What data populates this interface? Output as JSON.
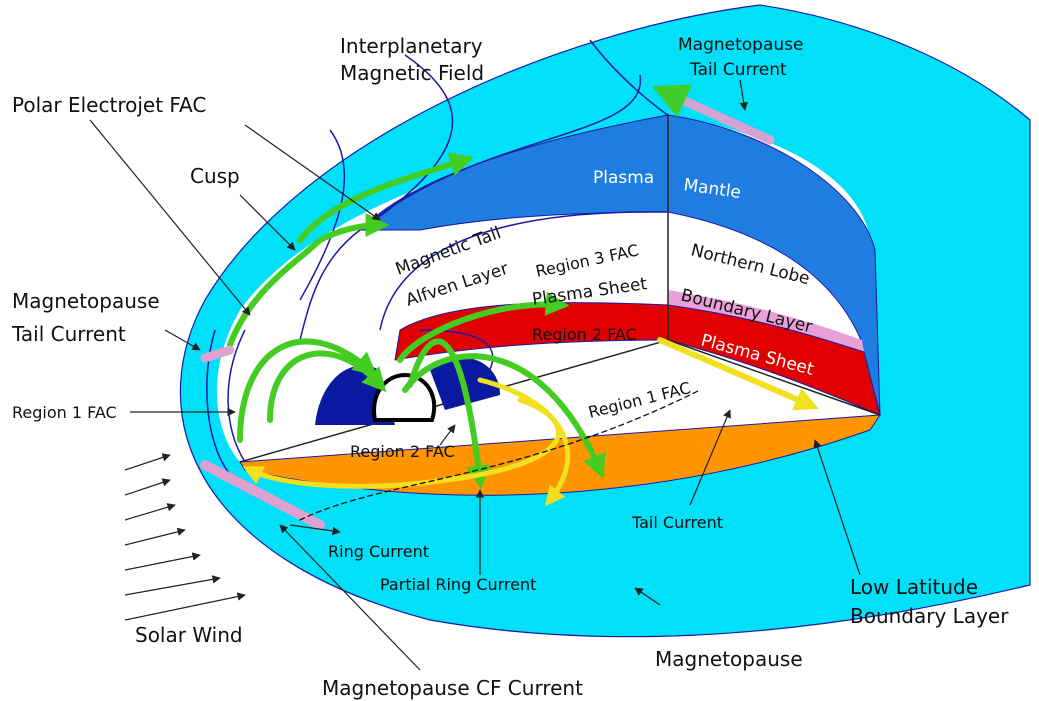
{
  "labels": {
    "interplanetary_magnetic_field": [
      "Interplanetary",
      "Magnetic Field"
    ],
    "magnetopause_tail_current_top": [
      "Magnetopause",
      "Tail Current"
    ],
    "polar_electrojet_fac": "Polar Electrojet FAC",
    "cusp": "Cusp",
    "plasma_mantle": [
      "Plasma",
      "Mantle"
    ],
    "magnetic_tail": "Magnetic Tail",
    "northern_lobe": "Northern Lobe",
    "region_3_fac": "Region 3 FAC",
    "alfven_layer": "Alfven Layer",
    "plasma_sheet_boundary": "Plasma Sheet",
    "boundary_layer": "Boundary Layer",
    "magnetopause_tail_current_left": [
      "Magnetopause",
      "Tail Current"
    ],
    "region_2_fac_upper": "Region 2 FAC",
    "plasma_sheet": "Plasma Sheet",
    "region_1_fac_left": "Region 1 FAC",
    "region_1_fac_right": "Region 1 FAC",
    "region_2_fac_lower": "Region 2 FAC",
    "tail_current": "Tail Current",
    "ring_current": "Ring Current",
    "partial_ring_current": "Partial Ring Current",
    "low_latitude_boundary_layer": [
      "Low Latitude",
      "Boundary Layer"
    ],
    "solar_wind": "Solar Wind",
    "magnetopause": "Magnetopause",
    "magnetopause_cf_current": "Magnetopause CF Current"
  }
}
